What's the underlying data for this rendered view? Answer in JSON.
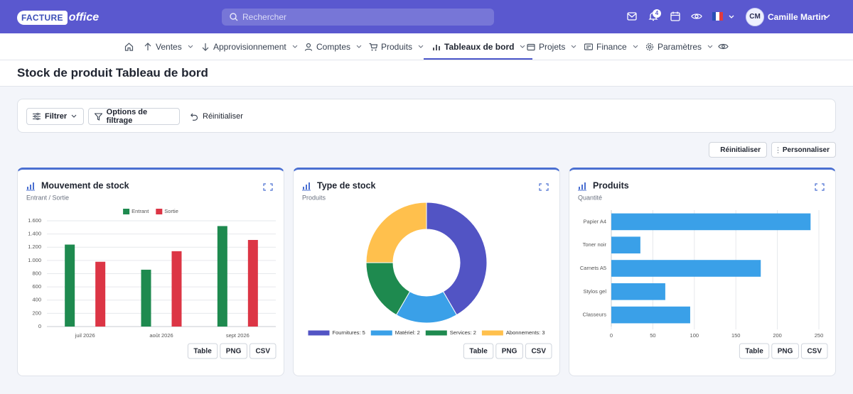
{
  "header": {
    "logo": {
      "brand": "FACTURE",
      "suffix": "office"
    },
    "search_placeholder": "Rechercher",
    "notification_count": 4,
    "user": {
      "initials": "CM",
      "name": "Camille Martin"
    }
  },
  "nav": {
    "items": [
      "Ventes",
      "Approvisionnement",
      "Comptes",
      "Produits",
      "Tableaux de bord",
      "Projets",
      "Finance",
      "Paramètres"
    ],
    "active": 4
  },
  "page": {
    "title": "Stock de produit Tableau de bord"
  },
  "filters": {
    "filter": "Filtrer",
    "options": "Options de filtrage",
    "reset": "Réinitialiser"
  },
  "actions": {
    "reset": "Réinitialiser",
    "customize": "Personnaliser"
  },
  "chart_data": [
    {
      "type": "bar",
      "title": "Mouvement de stock",
      "subtitle": "Entrant / Sortie",
      "categories": [
        "juil 2026",
        "août 2026",
        "sept 2026"
      ],
      "series": [
        {
          "name": "Entrant",
          "color": "#1e8a4f",
          "values": [
            1240,
            860,
            1520
          ]
        },
        {
          "name": "Sortie",
          "color": "#dc3545",
          "values": [
            980,
            1140,
            1310
          ]
        }
      ],
      "ylim": [
        0,
        1600
      ],
      "yticks": [
        0,
        200,
        400,
        600,
        800,
        {
          "value": 1000,
          "label": "1.000"
        },
        {
          "value": 1200,
          "label": "1.200"
        },
        {
          "value": 1400,
          "label": "1.400"
        },
        {
          "value": 1600,
          "label": "1.600"
        }
      ],
      "grid": true,
      "legend": "top",
      "export_buttons": [
        "Table",
        "PNG",
        "CSV"
      ]
    },
    {
      "type": "pie",
      "donut": true,
      "title": "Type de stock",
      "subtitle": "Produits",
      "categories": [
        "Fournitures: 5",
        "Matériel: 2",
        "Services: 2",
        "Abonnements: 3"
      ],
      "values": [
        5,
        2,
        2,
        3
      ],
      "colors": [
        "#5254c4",
        "#3aa0e8",
        "#1e8a4f",
        "#ffc04d"
      ],
      "legend": "bottom",
      "export_buttons": [
        "Table",
        "PNG",
        "CSV"
      ]
    },
    {
      "type": "bar",
      "orientation": "horizontal",
      "title": "Produits",
      "subtitle": "Quantité",
      "categories": [
        "Papier A4",
        "Toner noir",
        "Carnets A5",
        "Stylos gel",
        "Classeurs"
      ],
      "values": [
        240,
        35,
        180,
        65,
        95
      ],
      "color": "#3aa0e8",
      "xlim": [
        0,
        250
      ],
      "xticks": [
        0,
        50,
        100,
        150,
        200,
        250
      ],
      "grid": true,
      "export_buttons": [
        "Table",
        "PNG",
        "CSV"
      ]
    }
  ]
}
